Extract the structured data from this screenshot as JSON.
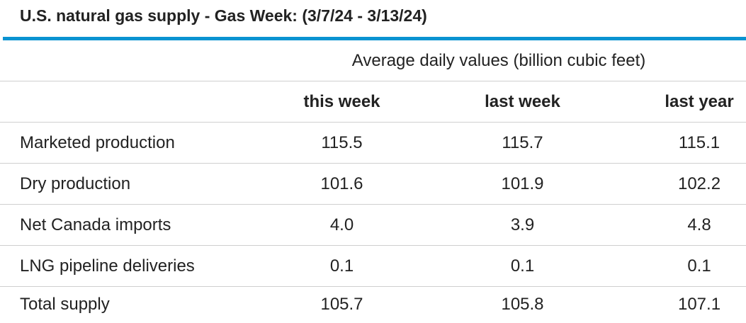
{
  "header": {
    "title": "U.S. natural gas supply - Gas Week: (3/7/24 - 3/13/24)"
  },
  "table": {
    "group_header": "Average daily values (billion cubic feet)",
    "columns": [
      "this week",
      "last week",
      "last year"
    ],
    "rows": [
      [
        "Marketed production",
        "115.5",
        "115.7",
        "115.1"
      ],
      [
        "Dry production",
        "101.6",
        "101.9",
        "102.2"
      ],
      [
        "Net Canada imports",
        "4.0",
        "3.9",
        "4.8"
      ],
      [
        "LNG pipeline deliveries",
        "0.1",
        "0.1",
        "0.1"
      ],
      [
        "Total supply",
        "105.7",
        "105.8",
        "107.1"
      ]
    ]
  }
}
